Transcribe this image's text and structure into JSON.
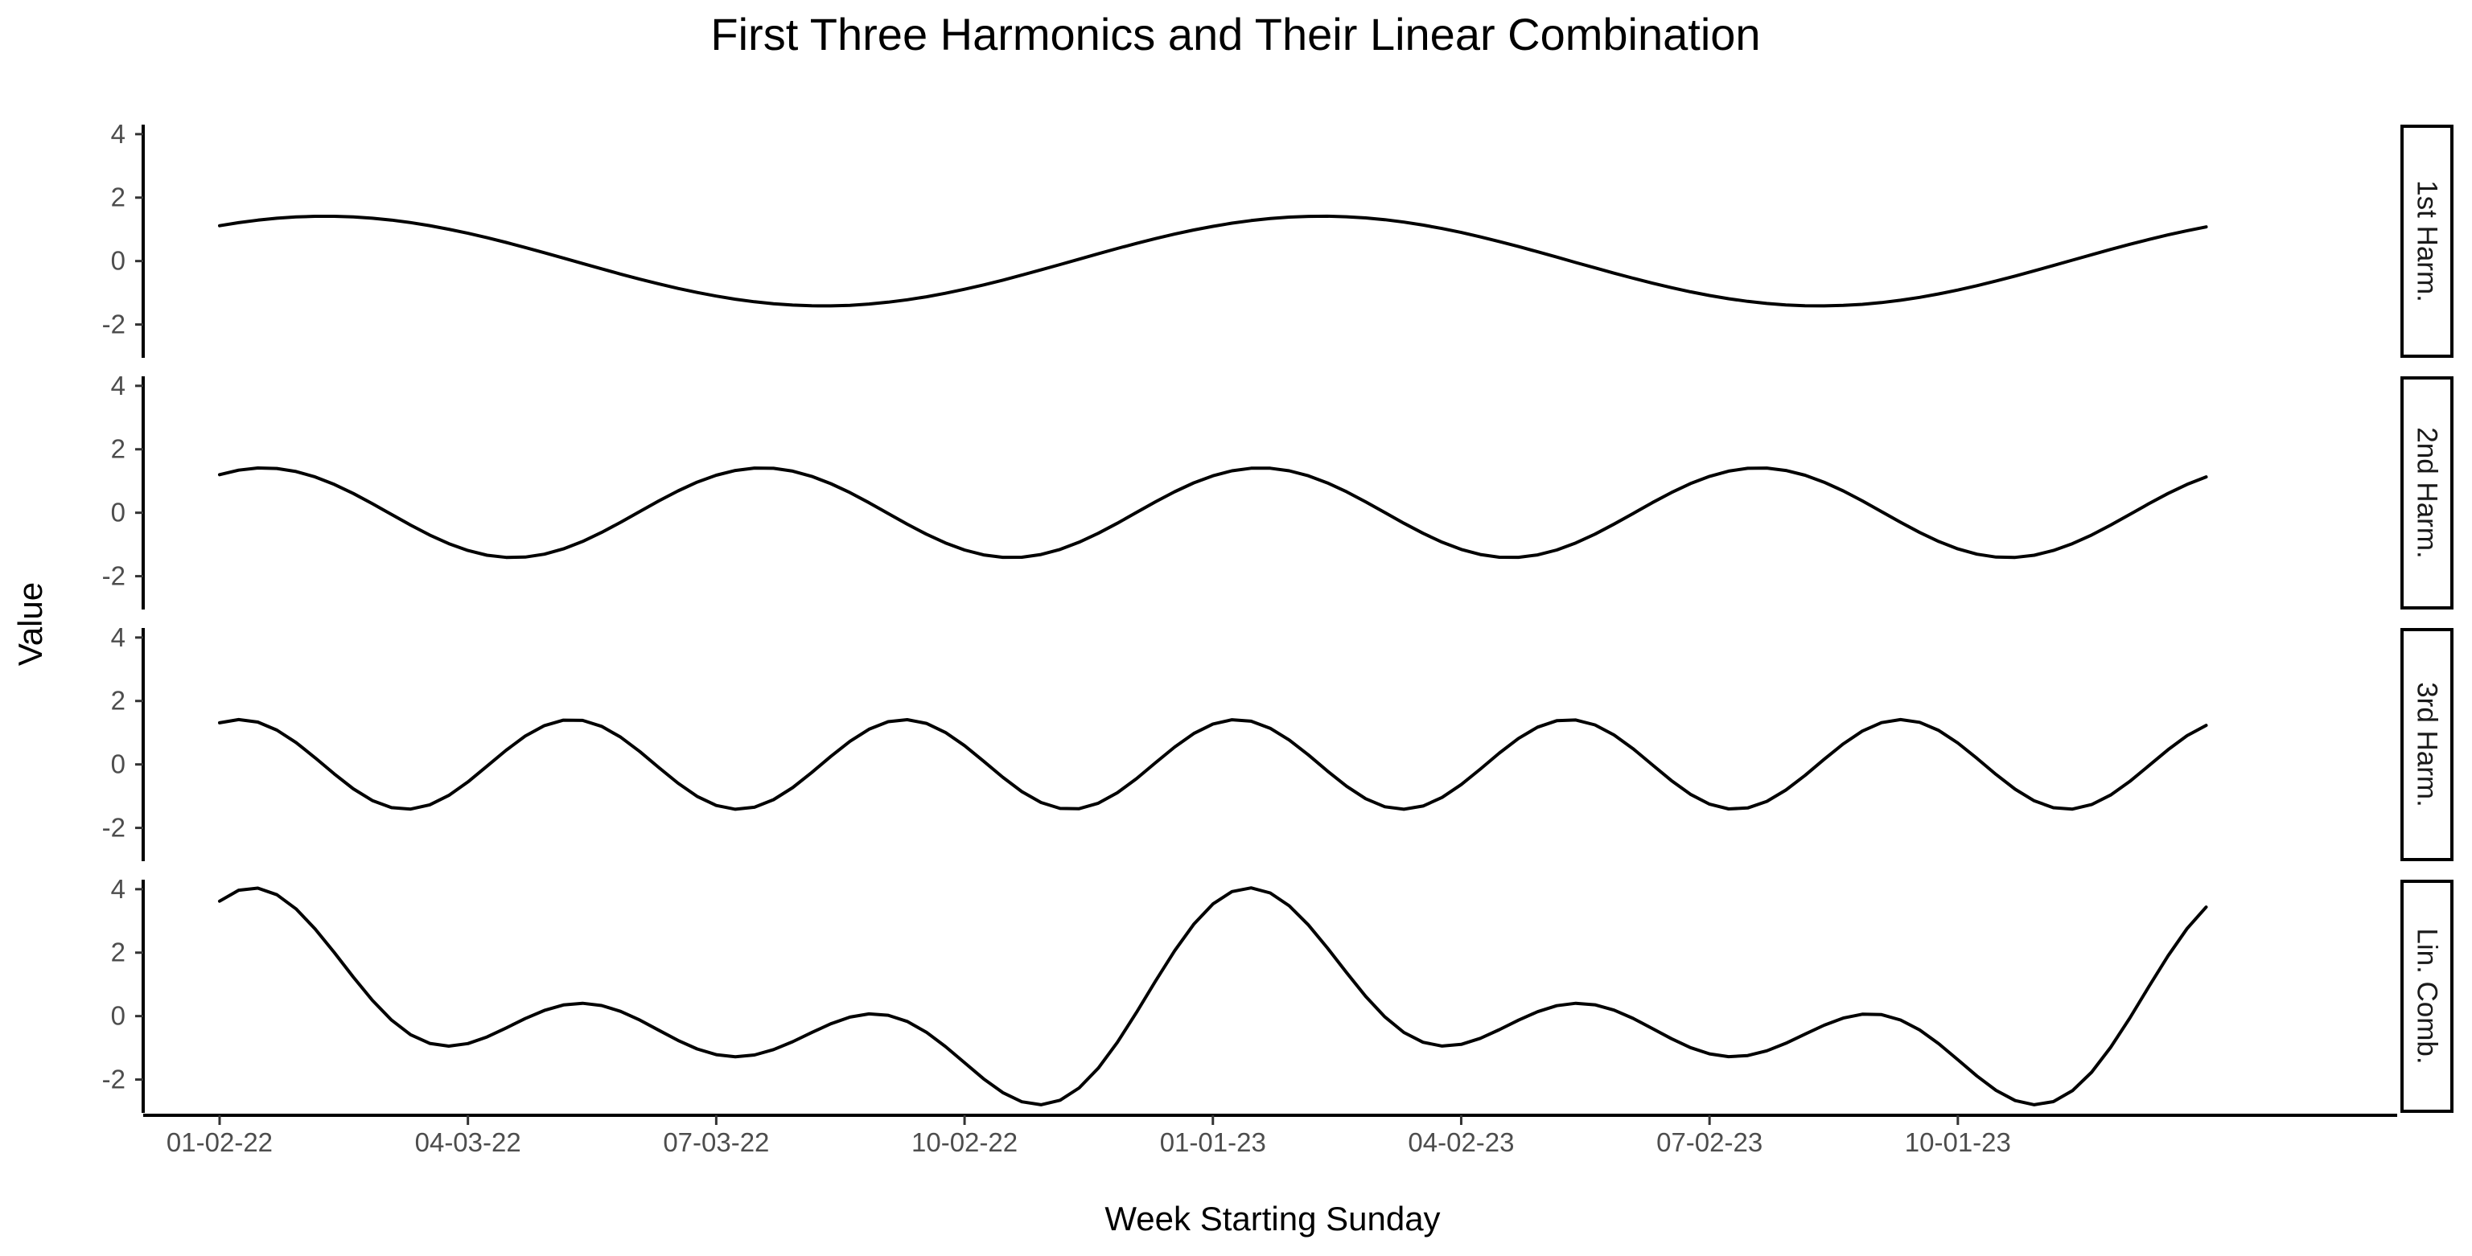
{
  "chart_data": {
    "type": "line",
    "title": "First Three Harmonics and Their Linear Combination",
    "xlabel": "Week Starting Sunday",
    "ylabel": "Value",
    "x_tick_labels": [
      "01-02-22",
      "04-03-22",
      "07-03-22",
      "10-02-22",
      "01-01-23",
      "04-02-23",
      "07-02-23",
      "10-01-23"
    ],
    "x_tick_dates": [
      "2022-01-02",
      "2022-04-03",
      "2022-07-03",
      "2022-10-02",
      "2023-01-01",
      "2023-04-02",
      "2023-07-02",
      "2023-10-01"
    ],
    "x_range": [
      "2021-12-05",
      "2024-03-10"
    ],
    "x_start": "2022-01-02",
    "x_end": "2023-12-31",
    "weeks": 105,
    "period_weeks": 52.18,
    "y_ticks": [
      -2,
      0,
      2,
      4
    ],
    "ylim": [
      -3.05,
      4.3
    ],
    "grid": false,
    "facet_labels": [
      "1st Harm.",
      "2nd Harm.",
      "3rd Harm.",
      "Lin. Comb."
    ],
    "series": [
      {
        "harmonic": 1,
        "amplitude": 1.414,
        "phase_deg": 52
      },
      {
        "harmonic": 2,
        "amplitude": 1.414,
        "phase_deg": 58
      },
      {
        "harmonic": 3,
        "amplitude": 1.414,
        "phase_deg": 68
      },
      {
        "combination": [
          1,
          2,
          3
        ]
      }
    ],
    "line_color": "#000000"
  }
}
